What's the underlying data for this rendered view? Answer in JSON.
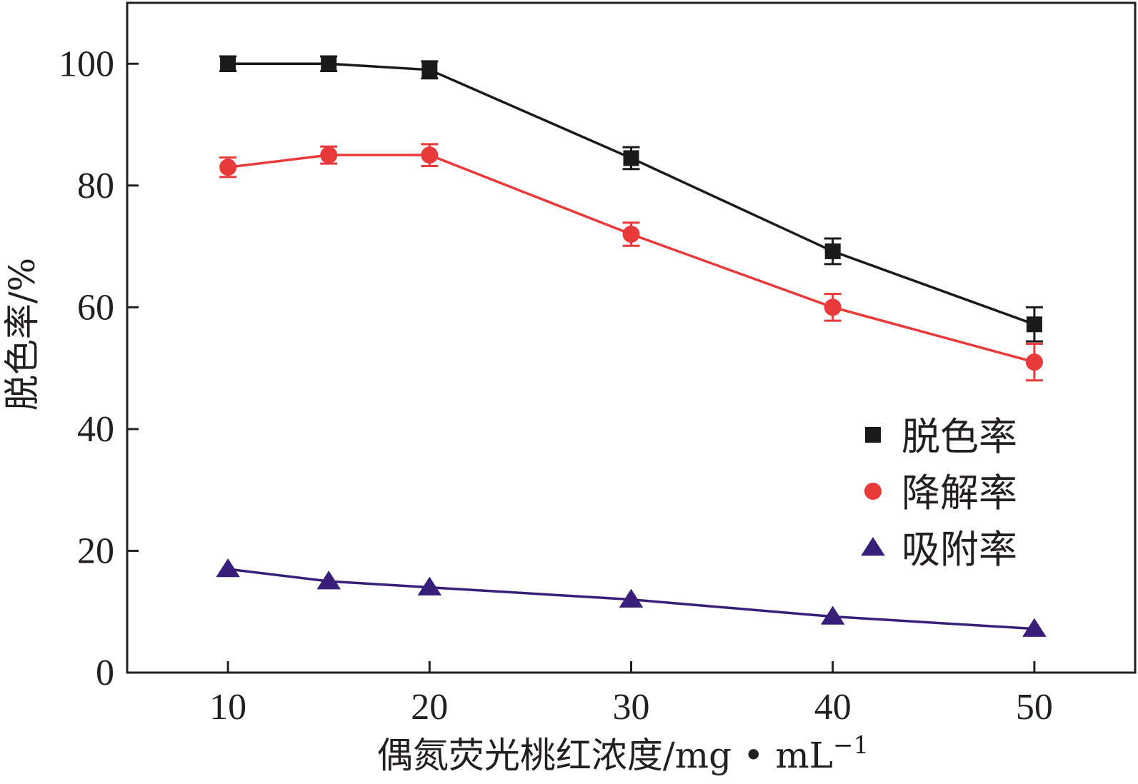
{
  "chart_data": {
    "type": "line",
    "xlabel": "偶氮荧光桃红浓度/mg • mL",
    "xlabel_superscript": "−1",
    "ylabel": "脱色率/%",
    "x": [
      10,
      15,
      20,
      30,
      40,
      50
    ],
    "xlim": [
      5,
      55
    ],
    "ylim": [
      0,
      110
    ],
    "xticks": [
      10,
      20,
      30,
      40,
      50
    ],
    "yticks": [
      0,
      20,
      40,
      60,
      80,
      100
    ],
    "grid": false,
    "legend_position": "middle-right",
    "series": [
      {
        "name": "脱色率",
        "color": "#1a1a1a",
        "marker": "square",
        "values": [
          100,
          100,
          99,
          84.5,
          69.2,
          57.2
        ],
        "errors": [
          1.2,
          1.2,
          1.4,
          1.8,
          2.1,
          2.8
        ]
      },
      {
        "name": "降解率",
        "color": "#e83a3a",
        "marker": "circle",
        "values": [
          83,
          85,
          85,
          72,
          60,
          51
        ],
        "errors": [
          1.6,
          1.4,
          1.8,
          1.9,
          2.2,
          3.0
        ]
      },
      {
        "name": "吸附率",
        "color": "#3a1f7a",
        "marker": "triangle",
        "values": [
          17,
          15,
          14,
          12,
          9.2,
          7.2
        ],
        "errors": [
          0,
          0,
          0,
          0,
          0,
          0
        ]
      }
    ]
  }
}
